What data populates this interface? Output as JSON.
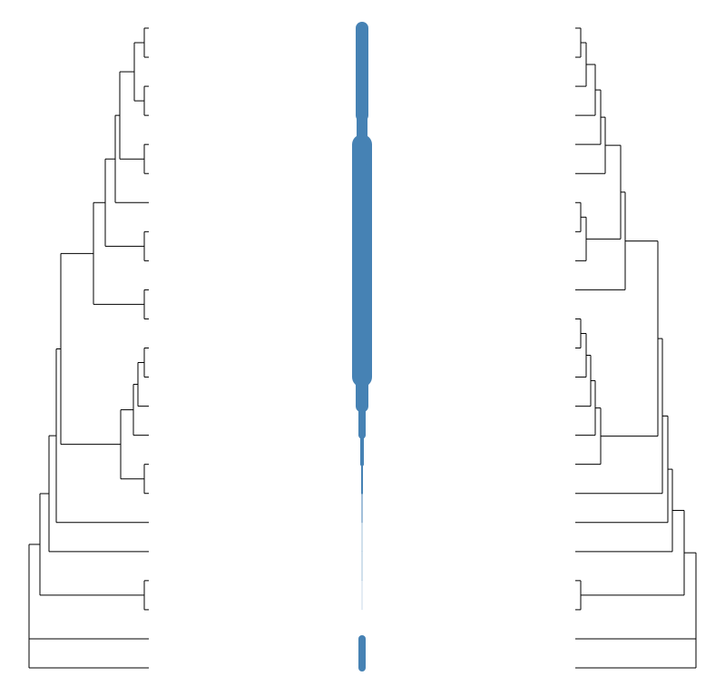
{
  "diagram": {
    "leaf_count": 23,
    "link_widths": [
      14,
      14,
      14,
      12,
      22,
      22,
      22,
      22,
      22,
      22,
      22,
      22,
      14,
      8,
      4,
      2,
      1,
      0.5,
      0.5,
      0.3,
      0,
      8
    ],
    "left_tree": {
      "h": 132,
      "children": [
        {
          "h": 120,
          "children": [
            {
              "h": 110,
              "children": [
                {
                  "h": 102,
                  "children": [
                    {
                      "h": 97,
                      "children": [
                        {
                          "h": 61,
                          "children": [
                            {
                              "h": 48,
                              "children": [
                                {
                                  "h": 37,
                                  "children": [
                                    {
                                      "h": 32,
                                      "children": [
                                        {
                                          "h": 16,
                                          "children": [
                                            {
                                              "h": 5,
                                              "children": [
                                                0,
                                                1
                                              ]
                                            },
                                            {
                                              "h": 5,
                                              "children": [
                                                2,
                                                3
                                              ]
                                            }
                                          ]
                                        },
                                        {
                                          "h": 5,
                                          "children": [
                                            4,
                                            5
                                          ]
                                        }
                                      ]
                                    },
                                    6
                                  ]
                                },
                                {
                                  "h": 5,
                                  "children": [
                                    7,
                                    8
                                  ]
                                }
                              ]
                            },
                            {
                              "h": 5,
                              "children": [
                                9,
                                10
                              ]
                            }
                          ]
                        },
                        {
                          "h": 31,
                          "children": [
                            {
                              "h": 17,
                              "children": [
                                {
                                  "h": 12,
                                  "children": [
                                    {
                                      "h": 5,
                                      "children": [
                                        11,
                                        12
                                      ]
                                    },
                                    13
                                  ]
                                },
                                14
                              ]
                            },
                            {
                              "h": 5,
                              "children": [
                                15,
                                16
                              ]
                            }
                          ]
                        }
                      ]
                    },
                    17
                  ]
                },
                18
              ]
            },
            {
              "h": 5,
              "children": [
                19,
                20
              ]
            }
          ]
        },
        {
          "h": 132,
          "children": [
            21,
            22
          ]
        }
      ]
    },
    "right_tree": {
      "h": 133,
      "children": [
        {
          "h": 120,
          "children": [
            {
              "h": 107,
              "children": [
                {
                  "h": 102,
                  "children": [
                    {
                      "h": 96,
                      "children": [
                        {
                          "h": 91,
                          "children": [
                            {
                              "h": 55,
                              "children": [
                                {
                                  "h": 50,
                                  "children": [
                                    {
                                      "h": 33,
                                      "children": [
                                        {
                                          "h": 28,
                                          "children": [
                                            {
                                              "h": 22,
                                              "children": [
                                                {
                                                  "h": 12,
                                                  "children": [
                                                    {
                                                      "h": 6,
                                                      "children": [
                                                        0,
                                                        1
                                                      ]
                                                    },
                                                    2
                                                  ]
                                                },
                                                3
                                              ]
                                            },
                                            4
                                          ]
                                        },
                                        5
                                      ]
                                    },
                                    {
                                      "h": 12,
                                      "children": [
                                        {
                                          "h": 6,
                                          "children": [
                                            6,
                                            7
                                          ]
                                        },
                                        8
                                      ]
                                    }
                                  ]
                                },
                                9
                              ]
                            },
                            {
                              "h": 28,
                              "children": [
                                {
                                  "h": 22,
                                  "children": [
                                    {
                                      "h": 17,
                                      "children": [
                                        {
                                          "h": 12,
                                          "children": [
                                            {
                                              "h": 6,
                                              "children": [
                                                10,
                                                11
                                              ]
                                            },
                                            12
                                          ]
                                        },
                                        13
                                      ]
                                    },
                                    14
                                  ]
                                },
                                15
                              ]
                            }
                          ]
                        },
                        16
                      ]
                    },
                    17
                  ]
                },
                18
              ]
            },
            {
              "h": 6,
              "children": [
                19,
                20
              ]
            }
          ]
        },
        {
          "h": 133,
          "children": [
            21,
            22
          ]
        }
      ]
    }
  }
}
